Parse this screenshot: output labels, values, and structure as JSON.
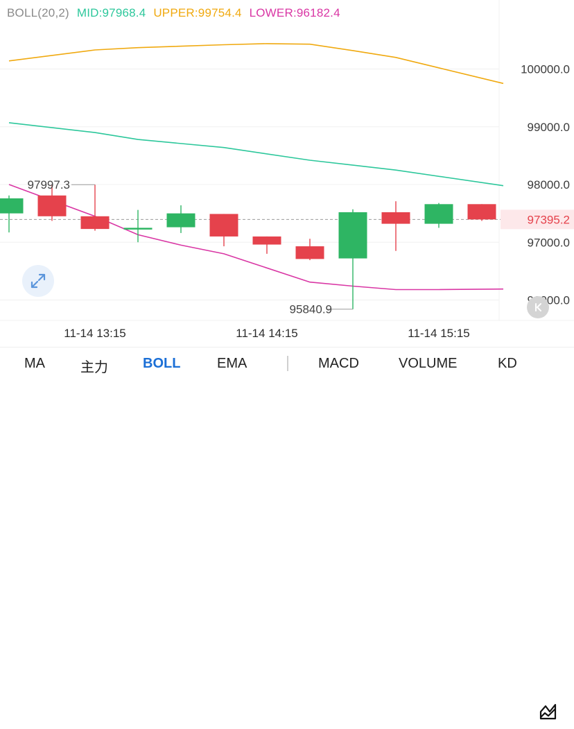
{
  "header": {
    "indicator": "BOLL(20,2)",
    "mid": "MID:97968.4",
    "upper": "UPPER:99754.4",
    "lower": "LOWER:96182.4",
    "colors": {
      "indicator": "#8a8a8a",
      "mid": "#2cc79b",
      "upper": "#f0a90f",
      "lower": "#d936a4"
    }
  },
  "chart_data": {
    "type": "candlestick",
    "y_axis_labels": [
      "100000.0",
      "99000.0",
      "98000.0",
      "97000.0",
      "96000.0"
    ],
    "x_axis_labels": [
      "11-14 13:15",
      "11-14 14:15",
      "11-14 15:15"
    ],
    "current_price": "97395.2",
    "high_annotation": "97997.3",
    "low_annotation": "95840.9",
    "ylim": [
      95700,
      100600
    ],
    "candles": [
      {
        "o": 97500,
        "c": 97760,
        "h": 97810,
        "l": 97170
      },
      {
        "o": 97810,
        "c": 97450,
        "h": 97990,
        "l": 97370
      },
      {
        "o": 97450,
        "c": 97230,
        "h": 97997.3,
        "l": 97200
      },
      {
        "o": 97230,
        "c": 97250,
        "h": 97560,
        "l": 97000
      },
      {
        "o": 97260,
        "c": 97500,
        "h": 97640,
        "l": 97160
      },
      {
        "o": 97490,
        "c": 97100,
        "h": 97490,
        "l": 96930
      },
      {
        "o": 97100,
        "c": 96960,
        "h": 97100,
        "l": 96800
      },
      {
        "o": 96930,
        "c": 96710,
        "h": 97060,
        "l": 96690
      },
      {
        "o": 96720,
        "c": 97520,
        "h": 97570,
        "l": 95840.9
      },
      {
        "o": 97520,
        "c": 97320,
        "h": 97710,
        "l": 96850
      },
      {
        "o": 97320,
        "c": 97660,
        "h": 97680,
        "l": 97250
      },
      {
        "o": 97660,
        "c": 97395.2,
        "h": 97660,
        "l": 97370
      }
    ],
    "series": [
      {
        "name": "MID",
        "color": "#2cc79b",
        "x": [
          0,
          2,
          3,
          5,
          7,
          9,
          11.5
        ],
        "values": [
          99070,
          98900,
          98780,
          98640,
          98420,
          98250,
          97980
        ]
      },
      {
        "name": "UPPER",
        "color": "#f0a90f",
        "x": [
          0,
          2,
          3,
          5,
          6,
          7,
          8,
          9,
          10,
          11.5
        ],
        "values": [
          100140,
          100330,
          100370,
          100420,
          100440,
          100430,
          100320,
          100200,
          100020,
          99750
        ]
      },
      {
        "name": "LOWER",
        "color": "#d936a4",
        "x": [
          0,
          2,
          3,
          4,
          5,
          7,
          8,
          9,
          10,
          11.5
        ],
        "values": [
          98000,
          97450,
          97130,
          96950,
          96800,
          96310,
          96240,
          96180,
          96180,
          96190
        ]
      }
    ],
    "colors": {
      "up": "#2eb563",
      "down": "#e5424c"
    }
  },
  "tabs": [
    {
      "label": "MA",
      "active": false
    },
    {
      "label": "主力",
      "active": false
    },
    {
      "label": "BOLL",
      "active": true
    },
    {
      "label": "EMA",
      "active": false
    },
    {
      "label": "MACD",
      "active": false
    },
    {
      "label": "VOLUME",
      "active": false
    },
    {
      "label": "KD",
      "active": false
    }
  ],
  "icons": {
    "expand": "expand-arrows-icon",
    "back": "scroll-to-latest-icon",
    "chart_type": "line-chart-icon"
  }
}
